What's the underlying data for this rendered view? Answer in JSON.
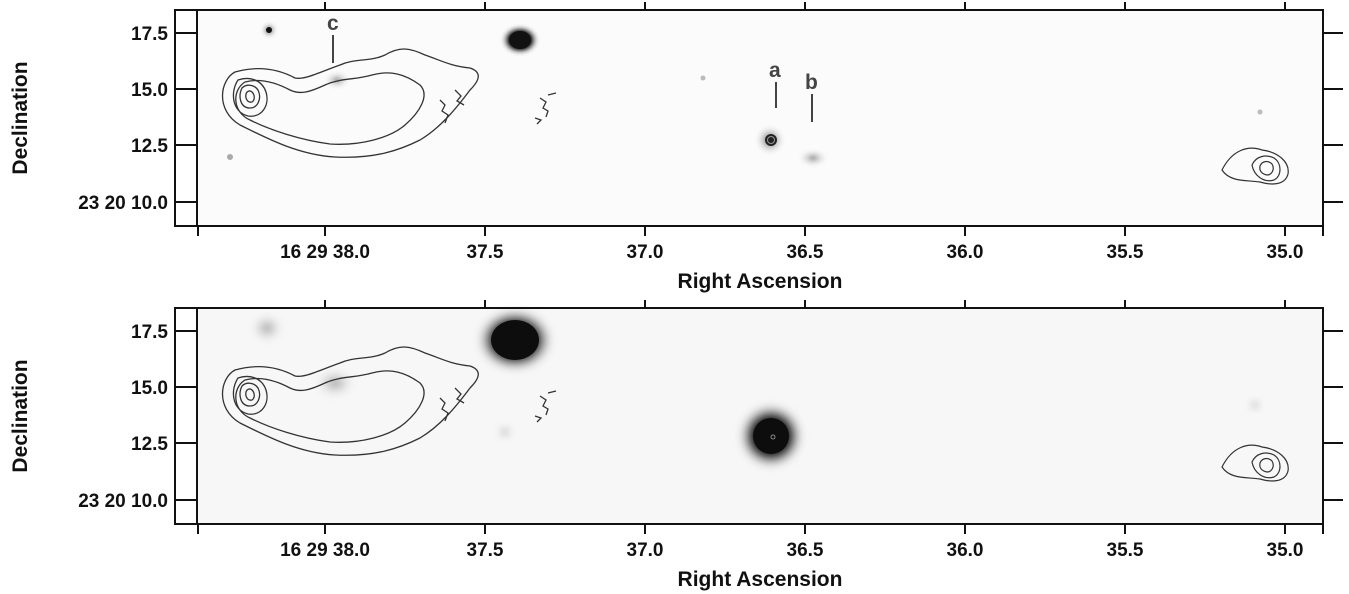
{
  "panels": [
    {
      "id": "top",
      "xlabel": "Right Ascension",
      "ylabel": "Declination",
      "x_ticks": [
        "16 29 38.0",
        "37.5",
        "37.0",
        "36.5",
        "36.0",
        "35.5",
        "35.0"
      ],
      "y_ticks": [
        "17.5",
        "15.0",
        "12.5",
        "23 20 10.0"
      ],
      "markers": [
        "a",
        "b",
        "c"
      ]
    },
    {
      "id": "bottom",
      "xlabel": "Right Ascension",
      "ylabel": "Declination",
      "x_ticks": [
        "16 29 38.0",
        "37.5",
        "37.0",
        "36.5",
        "36.0",
        "35.5",
        "35.0"
      ],
      "y_ticks": [
        "17.5",
        "15.0",
        "12.5",
        "23 20 10.0"
      ]
    }
  ]
}
